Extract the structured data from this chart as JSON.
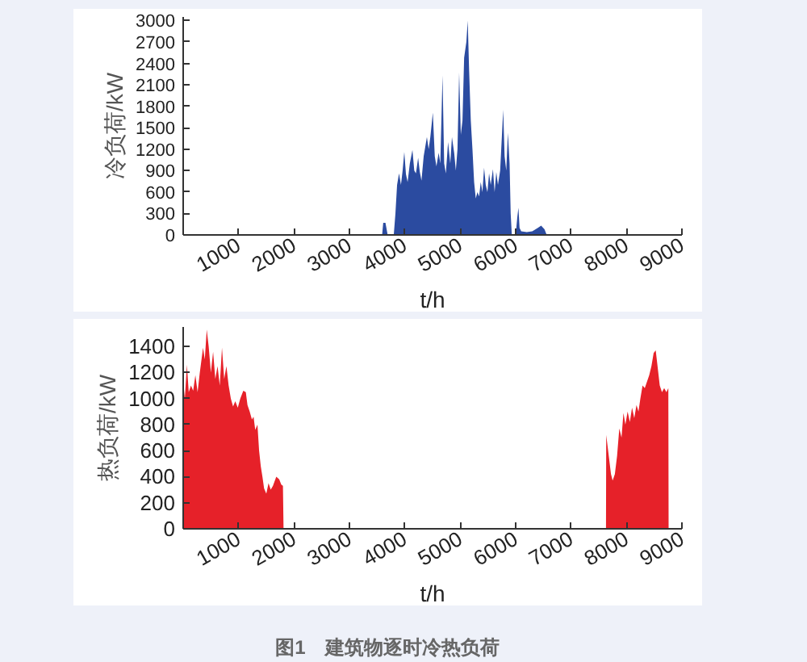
{
  "chart_data": [
    {
      "type": "area",
      "ylabel": "冷负荷/kW",
      "xlabel": "t/h",
      "color": "#2b4ba0",
      "x": [
        0,
        3590,
        3610,
        3650,
        3690,
        3800,
        3830,
        3860,
        3895,
        3930,
        3960,
        3990,
        4020,
        4050,
        4090,
        4137,
        4170,
        4200,
        4240,
        4270,
        4300,
        4340,
        4398,
        4430,
        4460,
        4505,
        4540,
        4570,
        4610,
        4640,
        4680,
        4710,
        4740,
        4780,
        4820,
        4850,
        4890,
        4920,
        4950,
        4980,
        5010,
        5040,
        5070,
        5110,
        5135,
        5160,
        5190,
        5220,
        5250,
        5280,
        5310,
        5340,
        5370,
        5400,
        5430,
        5460,
        5490,
        5520,
        5550,
        5590,
        5620,
        5650,
        5680,
        5720,
        5775,
        5800,
        5830,
        5860,
        5890,
        5910,
        5930,
        6000,
        6030,
        6050,
        6070,
        6100,
        6200,
        6300,
        6400,
        6460,
        6520,
        6560
      ],
      "values": [
        0,
        0,
        170,
        170,
        0,
        0,
        300,
        700,
        860,
        700,
        900,
        1160,
        850,
        740,
        1000,
        1190,
        900,
        860,
        1080,
        880,
        760,
        1100,
        1370,
        1200,
        1370,
        1710,
        1100,
        960,
        1150,
        1000,
        2230,
        1000,
        860,
        1300,
        1000,
        1370,
        1150,
        900,
        1200,
        2270,
        1400,
        1600,
        2480,
        2700,
        3000,
        2300,
        1600,
        1200,
        740,
        510,
        600,
        540,
        740,
        600,
        940,
        700,
        600,
        860,
        700,
        920,
        600,
        880,
        700,
        900,
        1750,
        1100,
        900,
        1430,
        1000,
        300,
        0,
        0,
        250,
        380,
        100,
        50,
        40,
        50,
        100,
        130,
        80,
        0
      ],
      "xlim": [
        0,
        9000
      ],
      "ylim": [
        0,
        3050
      ],
      "xticks": [
        1000,
        2000,
        3000,
        4000,
        5000,
        6000,
        7000,
        8000,
        9000
      ],
      "yticks": [
        0,
        300,
        600,
        900,
        1200,
        1500,
        1800,
        2100,
        2400,
        2700,
        3000
      ]
    },
    {
      "type": "area",
      "ylabel": "热负荷/kW",
      "xlabel": "t/h",
      "color": "#e62129",
      "x": [
        0,
        30,
        67,
        100,
        140,
        180,
        220,
        260,
        300,
        358,
        390,
        425,
        460,
        500,
        540,
        580,
        620,
        660,
        700,
        740,
        780,
        820,
        860,
        900,
        940,
        985,
        1030,
        1085,
        1130,
        1160,
        1200,
        1240,
        1270,
        1300,
        1340,
        1370,
        1400,
        1430,
        1460,
        1500,
        1540,
        1580,
        1620,
        1680,
        1733,
        1770,
        1800,
        1811,
        7630,
        7634,
        7680,
        7720,
        7750,
        7790,
        7830,
        7870,
        7910,
        7945,
        7980,
        8020,
        8060,
        8100,
        8140,
        8180,
        8216,
        8250,
        8290,
        8330,
        8370,
        8410,
        8450,
        8490,
        8527,
        8560,
        8600,
        8640,
        8680,
        8720,
        8755,
        8760
      ],
      "values": [
        1140,
        1000,
        1260,
        1050,
        1100,
        1060,
        1180,
        1050,
        1200,
        1390,
        1300,
        1530,
        1400,
        1200,
        1360,
        1150,
        1250,
        1100,
        1390,
        1150,
        1250,
        1100,
        1000,
        940,
        980,
        930,
        1000,
        1060,
        1050,
        950,
        900,
        840,
        860,
        760,
        800,
        600,
        480,
        400,
        310,
        270,
        350,
        300,
        330,
        400,
        380,
        340,
        330,
        0,
        0,
        720,
        560,
        420,
        370,
        420,
        560,
        770,
        700,
        890,
        800,
        900,
        820,
        930,
        850,
        950,
        900,
        1000,
        1100,
        1080,
        1130,
        1180,
        1250,
        1350,
        1370,
        1250,
        1100,
        1050,
        1080,
        1050,
        1080,
        0
      ],
      "xlim": [
        0,
        9000
      ],
      "ylim": [
        0,
        1550
      ],
      "xticks": [
        1000,
        2000,
        3000,
        4000,
        5000,
        6000,
        7000,
        8000,
        9000
      ],
      "yticks": [
        0,
        200,
        400,
        600,
        800,
        1000,
        1200,
        1400
      ],
      "annotations": [
        "图1　建筑物逐时冷热负荷"
      ]
    }
  ]
}
